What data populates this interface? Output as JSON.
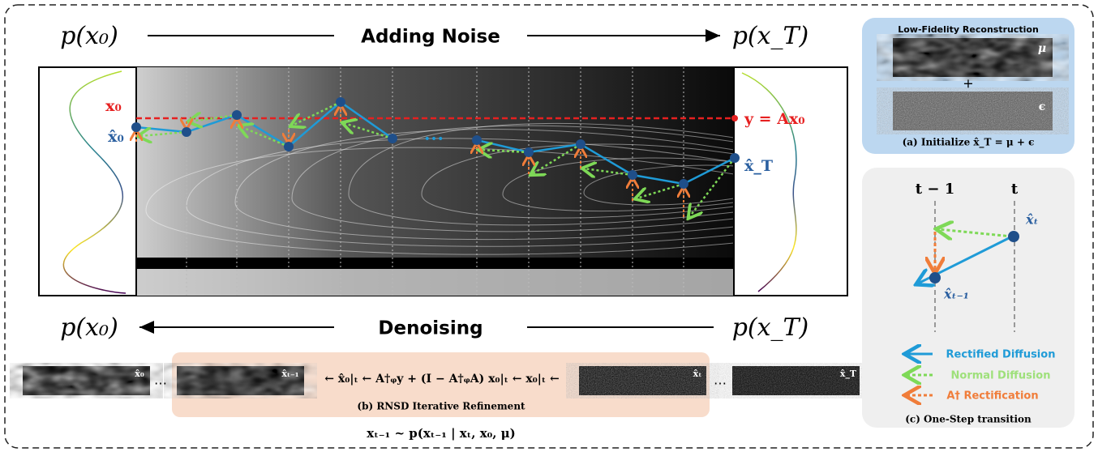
{
  "top": {
    "left": "p(x₀)",
    "label": "Adding Noise",
    "right": "p(x_T)"
  },
  "plot": {
    "x0": "x₀",
    "x0_hat": "x̂₀",
    "y_label": "y = Ax₀",
    "xT_hat": "x̂_T",
    "ellipsis": "•••"
  },
  "bottom": {
    "left": "p(x₀)",
    "label": "Denoising",
    "right": "p(x_T)"
  },
  "panel_a": {
    "title": "Low-Fidelity Reconstruction",
    "mu": "μ",
    "plus": "+",
    "eps": "ϵ",
    "caption": "(a) Initialize x̂_T = μ + ϵ"
  },
  "panel_c": {
    "t_minus_1": "t − 1",
    "t": "t",
    "xt_hat": "x̂ₜ",
    "xt1_hat": "x̂ₜ₋₁",
    "legend": [
      "Rectified Diffusion",
      "Normal Diffusion",
      "A† Rectification"
    ],
    "caption": "(c) One-Step transition"
  },
  "strip": {
    "thumbs": [
      "x̂₀",
      "x̂ₜ₋₁",
      "x̂ₜ",
      "x̂_T"
    ],
    "dots": [
      "…",
      "…"
    ],
    "formula": "← x̂₀|ₜ ← A†ᵩy + (I − A†ᵩA) x₀|ₜ ← x₀|ₜ ←",
    "caption": "(b) RNSD Iterative Refinement",
    "sampling": "xₜ₋₁ ~ p(xₜ₋₁ | xₜ, x₀, μ)"
  }
}
